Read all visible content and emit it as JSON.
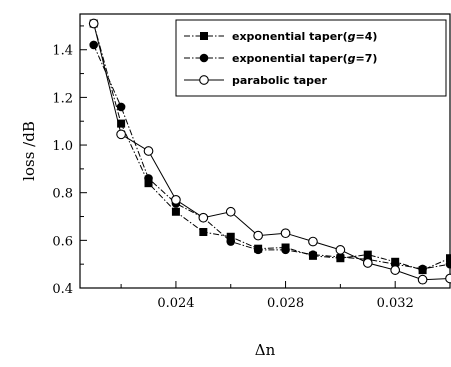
{
  "chart_data": {
    "type": "line",
    "xlabel": "Δn",
    "ylabel": "loss /dB",
    "xlim": [
      0.0205,
      0.034
    ],
    "ylim": [
      0.4,
      1.55
    ],
    "xticks": [
      0.024,
      0.028,
      0.032
    ],
    "xtick_labels": [
      "0.024",
      "0.028",
      "0.032"
    ],
    "yticks": [
      0.4,
      0.6,
      0.8,
      1.0,
      1.2,
      1.4
    ],
    "ytick_labels": [
      "0.4",
      "0.6",
      "0.8",
      "1.0",
      "1.2",
      "1.4"
    ],
    "grid": false,
    "legend_position": "top-right",
    "series": [
      {
        "name_prefix": "exponential taper(",
        "name_italic": "g",
        "name_suffix": "=4)",
        "marker": "square",
        "line_style": "dash-dot",
        "color": "#000000",
        "x": [
          0.021,
          0.022,
          0.023,
          0.024,
          0.025,
          0.026,
          0.027,
          0.028,
          0.029,
          0.03,
          0.031,
          0.032,
          0.033,
          0.034
        ],
        "y": [
          1.51,
          1.09,
          0.84,
          0.72,
          0.635,
          0.615,
          0.565,
          0.57,
          0.535,
          0.525,
          0.54,
          0.51,
          0.475,
          0.525
        ]
      },
      {
        "name_prefix": "exponential taper(",
        "name_italic": "g",
        "name_suffix": "=7)",
        "marker": "circle-filled",
        "line_style": "dash-dot",
        "color": "#000000",
        "x": [
          0.021,
          0.022,
          0.023,
          0.024,
          0.025,
          0.026,
          0.027,
          0.028,
          0.029,
          0.03,
          0.031,
          0.032,
          0.033,
          0.034
        ],
        "y": [
          1.42,
          1.16,
          0.86,
          0.755,
          0.695,
          0.595,
          0.56,
          0.56,
          0.54,
          0.53,
          0.52,
          0.5,
          0.48,
          0.5
        ]
      },
      {
        "name_prefix": "parabolic taper",
        "name_italic": "",
        "name_suffix": "",
        "marker": "circle-open",
        "line_style": "solid",
        "color": "#000000",
        "x": [
          0.021,
          0.022,
          0.023,
          0.024,
          0.025,
          0.026,
          0.027,
          0.028,
          0.029,
          0.03,
          0.031,
          0.032,
          0.033,
          0.034
        ],
        "y": [
          1.51,
          1.045,
          0.975,
          0.77,
          0.695,
          0.72,
          0.62,
          0.63,
          0.595,
          0.56,
          0.505,
          0.475,
          0.435,
          0.44
        ]
      }
    ]
  }
}
